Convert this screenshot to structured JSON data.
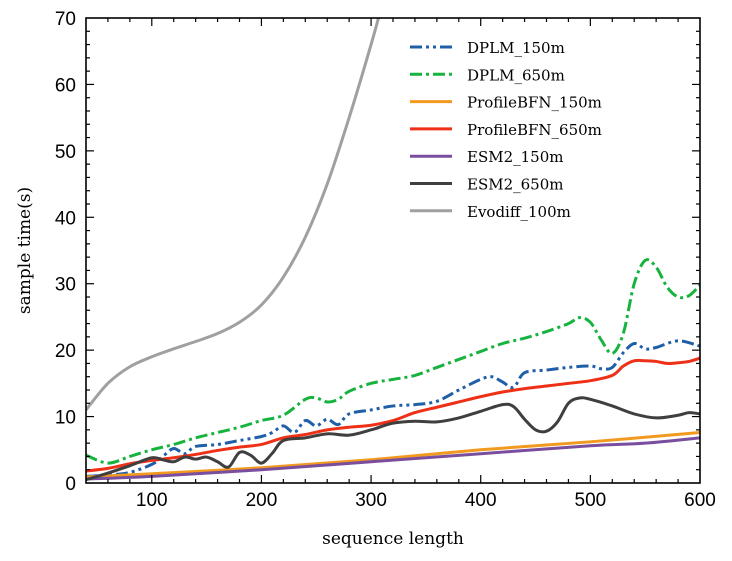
{
  "chart_data": {
    "type": "line",
    "title": "",
    "xlabel": "sequence length",
    "ylabel": "sample time(s)",
    "xlim": [
      40,
      600
    ],
    "ylim": [
      0,
      70
    ],
    "xticks": [
      100,
      200,
      300,
      400,
      500,
      600
    ],
    "yticks": [
      0,
      10,
      20,
      30,
      40,
      50,
      60,
      70
    ],
    "grid": false,
    "legend_position": "top-right",
    "series": [
      {
        "name": "DPLM_150m",
        "color": "#1f5fa8",
        "dash": "dashdotdot",
        "x": [
          40,
          60,
          80,
          100,
          110,
          120,
          130,
          140,
          160,
          180,
          200,
          210,
          220,
          230,
          240,
          250,
          260,
          270,
          280,
          300,
          320,
          340,
          360,
          380,
          400,
          410,
          420,
          430,
          440,
          460,
          480,
          500,
          510,
          520,
          530,
          540,
          550,
          560,
          580,
          600
        ],
        "y": [
          1.0,
          1.2,
          1.6,
          2.8,
          4.0,
          5.2,
          4.4,
          5.5,
          5.8,
          6.4,
          7.0,
          7.6,
          8.6,
          7.6,
          9.4,
          8.6,
          9.6,
          8.8,
          10.4,
          11.0,
          11.6,
          11.8,
          12.3,
          14.0,
          15.6,
          16.0,
          15.2,
          14.4,
          16.6,
          17.0,
          17.4,
          17.6,
          17.2,
          17.4,
          19.6,
          21.0,
          20.2,
          20.4,
          21.4,
          20.6
        ]
      },
      {
        "name": "DPLM_650m",
        "color": "#17b33f",
        "dash": "dashdot",
        "x": [
          40,
          60,
          80,
          100,
          120,
          140,
          160,
          180,
          200,
          220,
          240,
          250,
          260,
          270,
          280,
          300,
          320,
          340,
          360,
          380,
          400,
          420,
          440,
          460,
          480,
          490,
          500,
          510,
          520,
          530,
          540,
          550,
          560,
          570,
          580,
          590,
          600
        ],
        "y": [
          4.2,
          3.0,
          4.0,
          5.0,
          5.8,
          6.8,
          7.6,
          8.4,
          9.4,
          10.2,
          12.6,
          12.8,
          12.2,
          12.6,
          13.8,
          15.0,
          15.6,
          16.2,
          17.4,
          18.6,
          19.8,
          21.0,
          21.8,
          22.8,
          24.0,
          24.9,
          24.2,
          21.5,
          19.5,
          22.5,
          30.0,
          33.5,
          32.5,
          29.5,
          28.0,
          28.2,
          29.8
        ]
      },
      {
        "name": "ProfileBFN_150m",
        "color": "#f29a1f",
        "dash": "solid",
        "x": [
          40,
          100,
          200,
          300,
          400,
          500,
          600
        ],
        "y": [
          0.9,
          1.4,
          2.3,
          3.5,
          5.0,
          6.2,
          7.6
        ]
      },
      {
        "name": "ProfileBFN_650m",
        "color": "#ee3017",
        "dash": "solid",
        "x": [
          40,
          60,
          80,
          100,
          120,
          140,
          160,
          180,
          200,
          220,
          240,
          260,
          280,
          300,
          320,
          340,
          360,
          380,
          400,
          420,
          440,
          460,
          480,
          500,
          520,
          530,
          540,
          550,
          560,
          570,
          580,
          590,
          600
        ],
        "y": [
          1.8,
          2.2,
          2.9,
          3.4,
          3.8,
          4.3,
          4.9,
          5.4,
          5.8,
          6.8,
          7.3,
          8.0,
          8.4,
          8.7,
          9.4,
          10.6,
          11.4,
          12.2,
          13.0,
          13.7,
          14.2,
          14.6,
          15.0,
          15.4,
          16.2,
          17.6,
          18.4,
          18.4,
          18.3,
          18.0,
          18.1,
          18.3,
          18.8
        ]
      },
      {
        "name": "ESM2_150m",
        "color": "#7a4e9e",
        "dash": "solid",
        "x": [
          40,
          100,
          200,
          300,
          400,
          500,
          550,
          600
        ],
        "y": [
          0.6,
          1.0,
          2.0,
          3.2,
          4.4,
          5.6,
          6.0,
          6.8
        ]
      },
      {
        "name": "ESM2_650m",
        "color": "#3f3f3f",
        "dash": "solid",
        "x": [
          40,
          60,
          80,
          100,
          110,
          120,
          130,
          140,
          150,
          160,
          170,
          180,
          190,
          200,
          210,
          220,
          240,
          260,
          280,
          300,
          320,
          340,
          360,
          380,
          400,
          420,
          430,
          440,
          450,
          460,
          470,
          480,
          490,
          500,
          520,
          540,
          560,
          580,
          590,
          600
        ],
        "y": [
          0.5,
          1.5,
          2.6,
          3.8,
          3.5,
          3.2,
          3.9,
          3.6,
          3.9,
          3.2,
          2.4,
          4.6,
          4.2,
          3.0,
          4.5,
          6.4,
          6.8,
          7.4,
          7.2,
          8.0,
          9.0,
          9.3,
          9.2,
          9.8,
          10.8,
          11.8,
          11.5,
          9.6,
          8.0,
          7.8,
          9.2,
          12.0,
          12.8,
          12.6,
          11.6,
          10.4,
          9.8,
          10.2,
          10.6,
          10.4
        ]
      },
      {
        "name": "Evodiff_100m",
        "color": "#a0a0a0",
        "dash": "solid",
        "x": [
          40,
          60,
          80,
          100,
          120,
          140,
          160,
          180,
          200,
          220,
          240,
          260,
          280,
          300,
          310
        ],
        "y": [
          11.0,
          15.0,
          17.5,
          19.0,
          20.2,
          21.3,
          22.5,
          24.2,
          26.8,
          31.0,
          37.0,
          45.0,
          55.0,
          66.0,
          72.0
        ]
      }
    ]
  }
}
